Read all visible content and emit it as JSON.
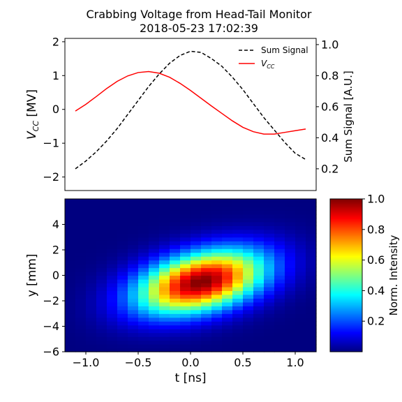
{
  "figure": {
    "title_line1": "Crabbing Voltage from Head-Tail Monitor",
    "title_line2": "2018-05-23 17:02:39"
  },
  "chart_data": [
    {
      "type": "line",
      "panel": "top",
      "xlim": [
        -1.2,
        1.2
      ],
      "ylim_left": [
        -2.4,
        2.1
      ],
      "ylim_right": [
        0.06,
        1.04
      ],
      "yticks_left": [
        -2,
        -1,
        0,
        1,
        2
      ],
      "yticks_right": [
        0.2,
        0.4,
        0.6,
        0.8,
        1.0
      ],
      "ylabel_left_base": "V",
      "ylabel_left_sub": "CC",
      "ylabel_left_unit": " [MV]",
      "ylabel_right": "Sum Signal [A.U.]",
      "grid": false,
      "legend_position": "top-right",
      "series": [
        {
          "name": "Sum Signal",
          "axis": "right",
          "color": "#000000",
          "style": "dashed",
          "x": [
            -1.1,
            -1.0,
            -0.9,
            -0.8,
            -0.7,
            -0.6,
            -0.5,
            -0.4,
            -0.3,
            -0.2,
            -0.1,
            0.0,
            0.1,
            0.2,
            0.3,
            0.4,
            0.5,
            0.6,
            0.7,
            0.8,
            0.9,
            1.0,
            1.1
          ],
          "y": [
            0.2,
            0.25,
            0.31,
            0.38,
            0.46,
            0.55,
            0.64,
            0.73,
            0.81,
            0.88,
            0.93,
            0.957,
            0.95,
            0.91,
            0.86,
            0.79,
            0.71,
            0.62,
            0.53,
            0.45,
            0.37,
            0.3,
            0.26
          ]
        },
        {
          "name_base": "V",
          "name_sub": "CC",
          "axis": "left",
          "color": "#ff0000",
          "style": "solid",
          "x": [
            -1.1,
            -1.0,
            -0.9,
            -0.8,
            -0.7,
            -0.6,
            -0.5,
            -0.4,
            -0.3,
            -0.2,
            -0.1,
            0.0,
            0.1,
            0.2,
            0.3,
            0.4,
            0.5,
            0.6,
            0.7,
            0.8,
            0.9,
            1.0,
            1.1
          ],
          "y": [
            -0.05,
            0.15,
            0.38,
            0.62,
            0.83,
            0.99,
            1.09,
            1.12,
            1.07,
            0.95,
            0.77,
            0.56,
            0.33,
            0.1,
            -0.12,
            -0.34,
            -0.53,
            -0.66,
            -0.73,
            -0.73,
            -0.68,
            -0.63,
            -0.58
          ]
        }
      ]
    },
    {
      "type": "heatmap",
      "panel": "bottom",
      "xlim": [
        -1.2,
        1.2
      ],
      "ylim": [
        -6,
        6
      ],
      "xticks": [
        -1.0,
        -0.5,
        0.0,
        0.5,
        1.0
      ],
      "xtick_labels": [
        "−1.0",
        "−0.5",
        "0.0",
        "0.5",
        "1.0"
      ],
      "yticks": [
        -6,
        -4,
        -2,
        0,
        2,
        4
      ],
      "ytick_labels": [
        "−6",
        "−4",
        "−2",
        "0",
        "2",
        "4"
      ],
      "xlabel": "t [ns]",
      "ylabel": "y [mm]",
      "colormap": "jet",
      "colorbar_label": "Norm. Intensity",
      "colorbar_range": [
        0.0,
        1.0
      ],
      "colorbar_ticks": [
        0.2,
        0.4,
        0.6,
        0.8,
        1.0
      ],
      "center_t": 0.1,
      "center_y": -0.5,
      "sigma_t": 0.42,
      "sigma_y": 1.6,
      "tilt_mm_per_ns": 1.6,
      "peak_intensity": 1.0
    }
  ]
}
